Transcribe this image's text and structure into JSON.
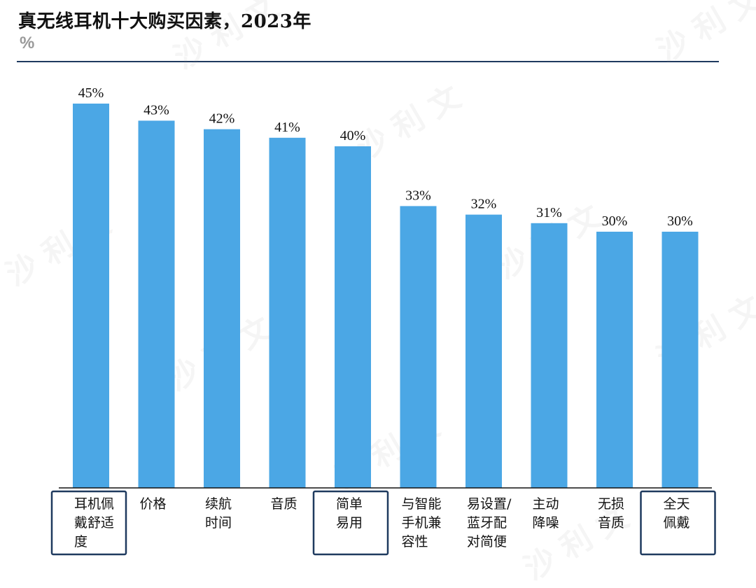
{
  "header": {
    "title": "真无线耳机十大购买因素，2023年",
    "unit": "%"
  },
  "watermark": {
    "text": "沙 利 文"
  },
  "colors": {
    "bar": "#4BA7E5",
    "axis": "#111111",
    "rule": "#1F3A5F",
    "highlight_border": "#1F3A5F"
  },
  "chart_data": {
    "type": "bar",
    "title": "真无线耳机十大购买因素，2023年",
    "ylabel": "%",
    "xlabel": "",
    "ylim": [
      0,
      50
    ],
    "grid": false,
    "categories": [
      [
        "耳机佩",
        "戴舒适",
        "度"
      ],
      [
        "价格"
      ],
      [
        "续航",
        "时间"
      ],
      [
        "音质"
      ],
      [
        "简单",
        "易用"
      ],
      [
        "与智能",
        "手机兼",
        "容性"
      ],
      [
        "易设置/",
        "蓝牙配",
        "对简便"
      ],
      [
        "主动",
        "降噪"
      ],
      [
        "无损",
        "音质"
      ],
      [
        "全天",
        "佩戴"
      ]
    ],
    "values": [
      45,
      43,
      42,
      41,
      40,
      33,
      32,
      31,
      30,
      30
    ],
    "value_labels": [
      "45%",
      "43%",
      "42%",
      "41%",
      "40%",
      "33%",
      "32%",
      "31%",
      "30%",
      "30%"
    ],
    "highlighted": [
      true,
      false,
      false,
      false,
      true,
      false,
      false,
      false,
      false,
      true
    ]
  }
}
